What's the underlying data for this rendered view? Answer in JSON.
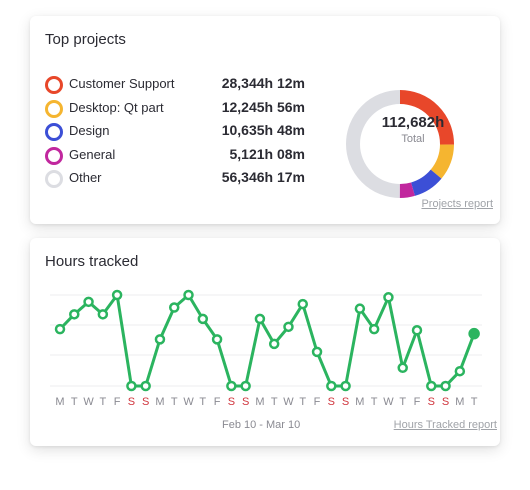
{
  "top_projects": {
    "title": "Top projects",
    "items": [
      {
        "name": "Customer Support",
        "value": "28,344h 12m",
        "color": "#e8472a",
        "hours": 28344.2
      },
      {
        "name": "Desktop: Qt part",
        "value": "12,245h 56m",
        "color": "#f5b530",
        "hours": 12245.93
      },
      {
        "name": "Design",
        "value": "10,635h 48m",
        "color": "#3c4fd6",
        "hours": 10635.8
      },
      {
        "name": "General",
        "value": "5,121h 08m",
        "color": "#c1279e",
        "hours": 5121.13
      },
      {
        "name": "Other",
        "value": "56,346h 17m",
        "color": "#dcdde2",
        "hours": 56346.28
      }
    ],
    "total_value": "112,682h",
    "total_label": "Total",
    "report_link": "Projects report"
  },
  "hours_tracked": {
    "title": "Hours tracked",
    "date_range": "Feb 10 - Mar 10",
    "report_link": "Hours Tracked report",
    "line_color": "#2bb45f",
    "weekend_color": "#d0343c",
    "weekday_color": "#8a8a92"
  },
  "chart_data": {
    "type": "line",
    "categories": [
      "M",
      "T",
      "W",
      "T",
      "F",
      "S",
      "S",
      "M",
      "T",
      "W",
      "T",
      "F",
      "S",
      "S",
      "M",
      "T",
      "W",
      "T",
      "F",
      "S",
      "S",
      "M",
      "T",
      "W",
      "T",
      "F",
      "S",
      "S",
      "M",
      "T"
    ],
    "values": [
      5.0,
      6.3,
      7.4,
      6.3,
      8.0,
      0,
      0,
      4.1,
      6.9,
      8.0,
      5.9,
      4.1,
      0,
      0,
      5.9,
      3.7,
      5.2,
      7.2,
      3.0,
      0,
      0,
      6.8,
      5.0,
      7.8,
      1.6,
      4.9,
      0,
      0,
      1.3,
      4.6
    ],
    "ylim": [
      0,
      10
    ],
    "grid": true
  }
}
